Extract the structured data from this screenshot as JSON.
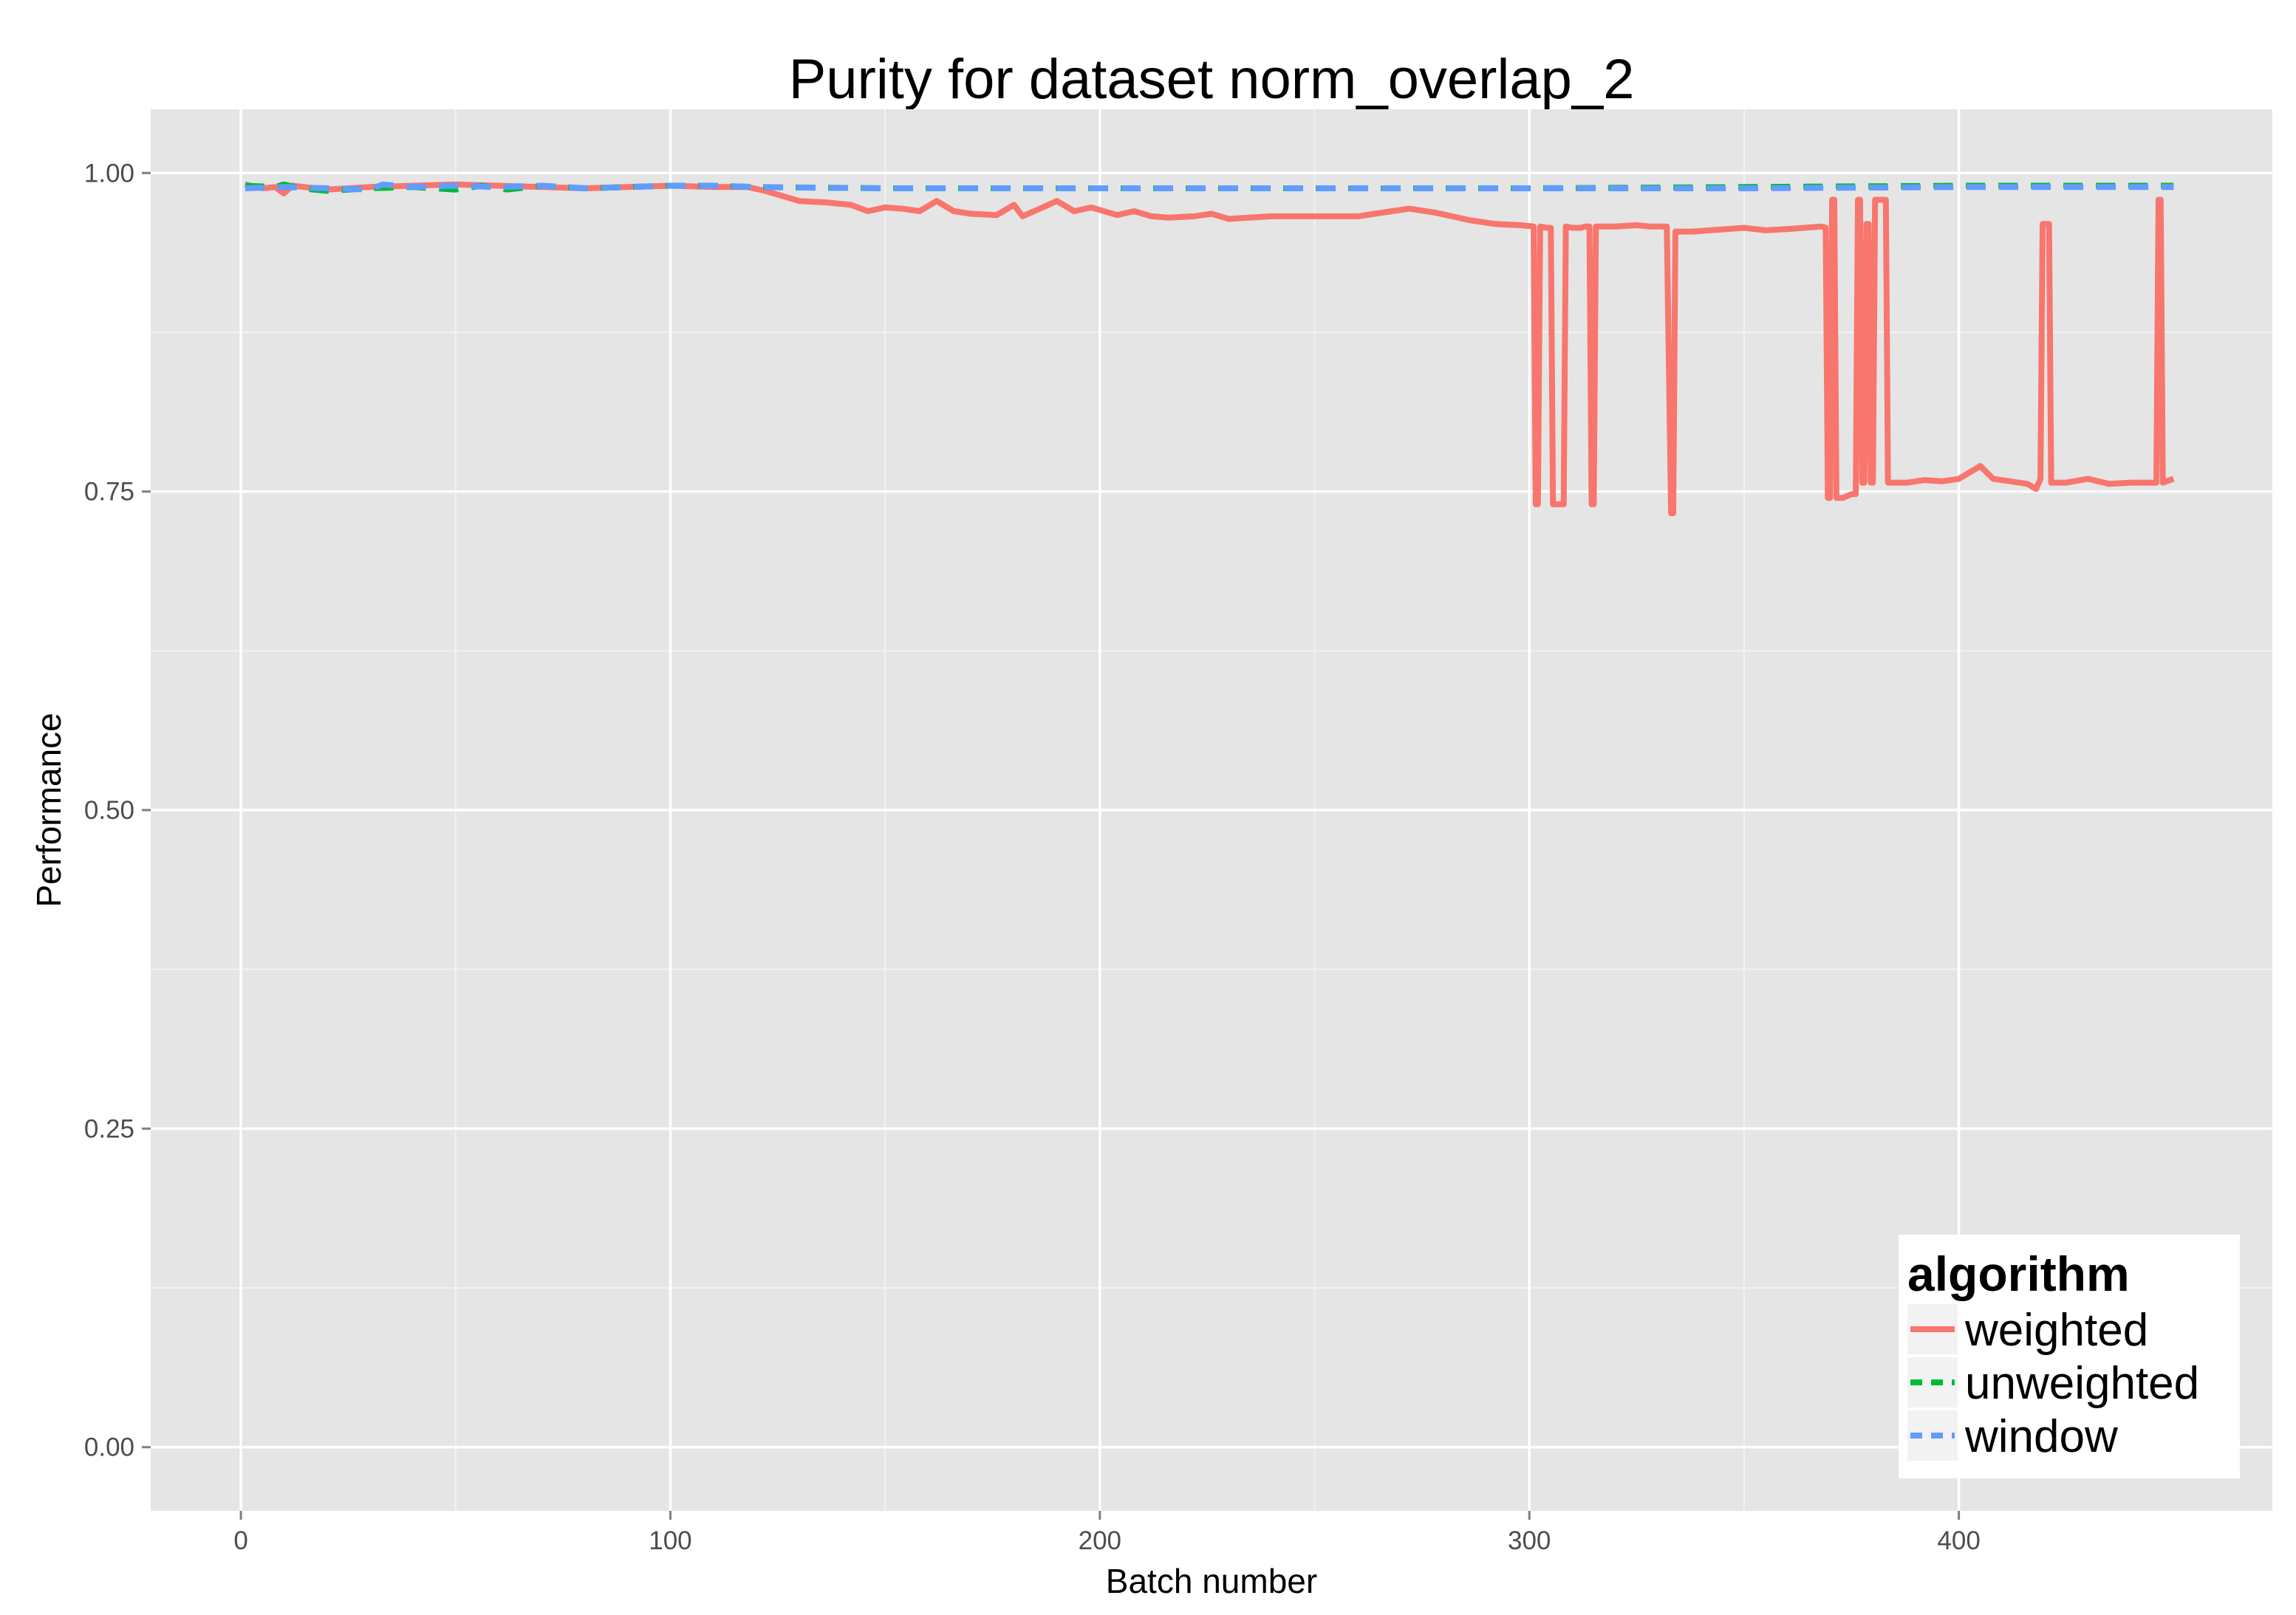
{
  "chart_data": {
    "type": "line",
    "title": "Purity for dataset norm_overlap_2",
    "xlabel": "Batch number",
    "ylabel": "Performance",
    "xlim": [
      -21,
      473
    ],
    "ylim": [
      -0.05,
      1.05
    ],
    "x_ticks": [
      0,
      100,
      200,
      300,
      400
    ],
    "x_tick_labels": [
      "0",
      "100",
      "200",
      "300",
      "400"
    ],
    "y_ticks": [
      0,
      0.25,
      0.5,
      0.75,
      1
    ],
    "y_tick_labels": [
      "0.00",
      "0.25",
      "0.50",
      "0.75",
      "1.00"
    ],
    "grid": true,
    "legend": {
      "title": "algorithm",
      "position": "bottom-right",
      "entries": [
        "weighted",
        "unweighted",
        "window"
      ]
    },
    "series": [
      {
        "name": "weighted",
        "color": "#F8766D",
        "dash": "solid",
        "points": [
          [
            1,
            0.991
          ],
          [
            5,
            0.988
          ],
          [
            8,
            0.989
          ],
          [
            10,
            0.984
          ],
          [
            12,
            0.99
          ],
          [
            20,
            0.987
          ],
          [
            30,
            0.989
          ],
          [
            40,
            0.99
          ],
          [
            50,
            0.991
          ],
          [
            60,
            0.99
          ],
          [
            70,
            0.989
          ],
          [
            80,
            0.988
          ],
          [
            90,
            0.989
          ],
          [
            100,
            0.99
          ],
          [
            110,
            0.989
          ],
          [
            118,
            0.989
          ],
          [
            122,
            0.986
          ],
          [
            126,
            0.982
          ],
          [
            130,
            0.978
          ],
          [
            136,
            0.977
          ],
          [
            142,
            0.975
          ],
          [
            146,
            0.97
          ],
          [
            150,
            0.973
          ],
          [
            154,
            0.972
          ],
          [
            158,
            0.97
          ],
          [
            162,
            0.978
          ],
          [
            166,
            0.97
          ],
          [
            170,
            0.968
          ],
          [
            176,
            0.967
          ],
          [
            180,
            0.975
          ],
          [
            182,
            0.966
          ],
          [
            186,
            0.972
          ],
          [
            190,
            0.978
          ],
          [
            194,
            0.97
          ],
          [
            198,
            0.973
          ],
          [
            204,
            0.967
          ],
          [
            208,
            0.97
          ],
          [
            212,
            0.966
          ],
          [
            216,
            0.965
          ],
          [
            222,
            0.966
          ],
          [
            226,
            0.968
          ],
          [
            230,
            0.964
          ],
          [
            240,
            0.966
          ],
          [
            250,
            0.966
          ],
          [
            260,
            0.966
          ],
          [
            264,
            0.968
          ],
          [
            268,
            0.97
          ],
          [
            272,
            0.972
          ],
          [
            278,
            0.969
          ],
          [
            282,
            0.966
          ],
          [
            286,
            0.963
          ],
          [
            292,
            0.96
          ],
          [
            298,
            0.959
          ],
          [
            301,
            0.958
          ],
          [
            301.5,
            0.74
          ],
          [
            302,
            0.74
          ],
          [
            302.5,
            0.958
          ],
          [
            304,
            0.957
          ],
          [
            305,
            0.957
          ],
          [
            305.5,
            0.74
          ],
          [
            308,
            0.74
          ],
          [
            308.5,
            0.958
          ],
          [
            310,
            0.957
          ],
          [
            312,
            0.957
          ],
          [
            313,
            0.958
          ],
          [
            314,
            0.958
          ],
          [
            314.5,
            0.74
          ],
          [
            315,
            0.74
          ],
          [
            315.5,
            0.958
          ],
          [
            320,
            0.958
          ],
          [
            325,
            0.959
          ],
          [
            328,
            0.958
          ],
          [
            332,
            0.958
          ],
          [
            333,
            0.733
          ],
          [
            333.5,
            0.733
          ],
          [
            334,
            0.954
          ],
          [
            338,
            0.954
          ],
          [
            342,
            0.955
          ],
          [
            346,
            0.956
          ],
          [
            350,
            0.957
          ],
          [
            355,
            0.955
          ],
          [
            360,
            0.956
          ],
          [
            364,
            0.957
          ],
          [
            368,
            0.958
          ],
          [
            369,
            0.957
          ],
          [
            369.5,
            0.745
          ],
          [
            370,
            0.745
          ],
          [
            370.5,
            0.979
          ],
          [
            371,
            0.979
          ],
          [
            371.5,
            0.745
          ],
          [
            373,
            0.745
          ],
          [
            375,
            0.748
          ],
          [
            376,
            0.748
          ],
          [
            376.5,
            0.979
          ],
          [
            377,
            0.979
          ],
          [
            377.5,
            0.757
          ],
          [
            378,
            0.757
          ],
          [
            378.5,
            0.96
          ],
          [
            379,
            0.96
          ],
          [
            379.5,
            0.757
          ],
          [
            380,
            0.757
          ],
          [
            380.5,
            0.979
          ],
          [
            383,
            0.979
          ],
          [
            383.5,
            0.757
          ],
          [
            388,
            0.757
          ],
          [
            392,
            0.759
          ],
          [
            396,
            0.758
          ],
          [
            400,
            0.76
          ],
          [
            405,
            0.77
          ],
          [
            408,
            0.76
          ],
          [
            412,
            0.758
          ],
          [
            416,
            0.756
          ],
          [
            418,
            0.752
          ],
          [
            419,
            0.76
          ],
          [
            419.5,
            0.96
          ],
          [
            421,
            0.96
          ],
          [
            421.5,
            0.757
          ],
          [
            425,
            0.757
          ],
          [
            430,
            0.76
          ],
          [
            435,
            0.756
          ],
          [
            440,
            0.757
          ],
          [
            444,
            0.757
          ],
          [
            446,
            0.757
          ],
          [
            446.5,
            0.979
          ],
          [
            447,
            0.979
          ],
          [
            447.5,
            0.757
          ],
          [
            450,
            0.76
          ]
        ]
      },
      {
        "name": "unweighted",
        "color": "#00BA38",
        "dash": "dashed",
        "points": [
          [
            1,
            0.99
          ],
          [
            8,
            0.989
          ],
          [
            10,
            0.991
          ],
          [
            14,
            0.988
          ],
          [
            20,
            0.986
          ],
          [
            30,
            0.988
          ],
          [
            40,
            0.989
          ],
          [
            50,
            0.987
          ],
          [
            56,
            0.99
          ],
          [
            62,
            0.987
          ],
          [
            70,
            0.99
          ],
          [
            80,
            0.988
          ],
          [
            90,
            0.989
          ],
          [
            100,
            0.99
          ],
          [
            110,
            0.99
          ],
          [
            120,
            0.989
          ],
          [
            150,
            0.988
          ],
          [
            200,
            0.988
          ],
          [
            250,
            0.988
          ],
          [
            300,
            0.988
          ],
          [
            350,
            0.989
          ],
          [
            400,
            0.99
          ],
          [
            450,
            0.99
          ]
        ]
      },
      {
        "name": "window",
        "color": "#619CFF",
        "dash": "dashed",
        "points": [
          [
            1,
            0.988
          ],
          [
            10,
            0.989
          ],
          [
            20,
            0.988
          ],
          [
            30,
            0.987
          ],
          [
            33,
            0.991
          ],
          [
            40,
            0.989
          ],
          [
            50,
            0.99
          ],
          [
            60,
            0.989
          ],
          [
            70,
            0.99
          ],
          [
            80,
            0.988
          ],
          [
            90,
            0.989
          ],
          [
            100,
            0.99
          ],
          [
            110,
            0.99
          ],
          [
            120,
            0.989
          ],
          [
            150,
            0.988
          ],
          [
            200,
            0.988
          ],
          [
            250,
            0.988
          ],
          [
            300,
            0.988
          ],
          [
            350,
            0.988
          ],
          [
            400,
            0.989
          ],
          [
            450,
            0.989
          ]
        ]
      }
    ]
  }
}
